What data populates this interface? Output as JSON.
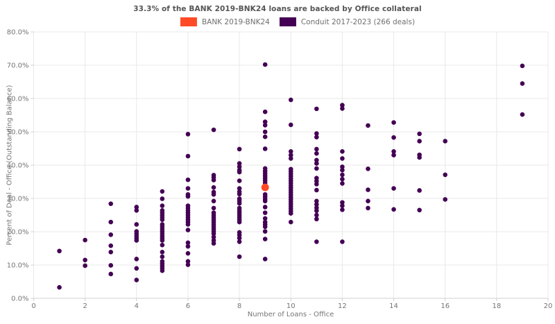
{
  "title": "33.3% of the BANK 2019-BNK24 loans are backed by Office collateral",
  "legend": [
    {
      "label": "BANK 2019-BNK24",
      "color": "#FF4B25"
    },
    {
      "label": "Conduit 2017-2023 (266 deals)",
      "color": "#440154"
    }
  ],
  "style": {
    "gridline_color": "#e8e8e8",
    "axis_line_color": "#cfcfcf",
    "tick_label_color": "#757575",
    "title_color": "#545454"
  },
  "chart_data": {
    "type": "scatter",
    "title": "33.3% of the BANK 2019-BNK24 loans are backed by Office collateral",
    "xlabel": "Number of Loans - Office",
    "ylabel": "Percent of Deal - Office (Outstanding Balance)",
    "xlim": [
      0,
      20
    ],
    "ylim": [
      0,
      80
    ],
    "x_ticks": [
      0,
      2,
      4,
      6,
      8,
      10,
      12,
      14,
      16,
      18,
      20
    ],
    "y_ticks": [
      0,
      10,
      20,
      30,
      40,
      50,
      60,
      70,
      80
    ],
    "y_tick_labels": [
      "0.0%",
      "10.0%",
      "20.0%",
      "30.0%",
      "40.0%",
      "50.0%",
      "60.0%",
      "70.0%",
      "80.0%"
    ],
    "grid": true,
    "legend_position": "top-center",
    "series": [
      {
        "name": "BANK 2019-BNK24",
        "color": "#FF4B25",
        "marker_radius": 5.5,
        "points": [
          [
            9,
            33.3
          ]
        ]
      },
      {
        "name": "Conduit 2017-2023 (266 deals)",
        "color": "#440154",
        "marker_radius": 3.3,
        "points": [
          [
            1,
            14.2
          ],
          [
            1,
            3.3
          ],
          [
            2,
            17.5
          ],
          [
            2,
            11.5
          ],
          [
            2,
            9.8
          ],
          [
            3,
            28.4
          ],
          [
            3,
            22.9
          ],
          [
            3,
            19.1
          ],
          [
            3,
            15.8
          ],
          [
            3,
            13.9
          ],
          [
            3,
            9.9
          ],
          [
            3,
            7.3
          ],
          [
            4,
            27.4
          ],
          [
            4,
            26.4
          ],
          [
            4,
            22.2
          ],
          [
            4,
            20.1
          ],
          [
            4,
            19.4
          ],
          [
            4,
            18.7
          ],
          [
            4,
            18.0
          ],
          [
            4,
            17.4
          ],
          [
            4,
            11.8
          ],
          [
            4,
            9.0
          ],
          [
            4,
            5.5
          ],
          [
            5,
            32.1
          ],
          [
            5,
            29.9
          ],
          [
            5,
            27.8
          ],
          [
            5,
            26.4
          ],
          [
            5,
            25.7
          ],
          [
            5,
            25.0
          ],
          [
            5,
            24.3
          ],
          [
            5,
            23.6
          ],
          [
            5,
            22.2
          ],
          [
            5,
            21.5
          ],
          [
            5,
            20.8
          ],
          [
            5,
            20.1
          ],
          [
            5,
            19.4
          ],
          [
            5,
            18.7
          ],
          [
            5,
            18.0
          ],
          [
            5,
            17.4
          ],
          [
            5,
            16.0
          ],
          [
            5,
            13.9
          ],
          [
            5,
            12.5
          ],
          [
            5,
            11.1
          ],
          [
            5,
            10.4
          ],
          [
            5,
            9.7
          ],
          [
            5,
            9.0
          ],
          [
            5,
            8.3
          ],
          [
            6,
            49.3
          ],
          [
            6,
            42.7
          ],
          [
            6,
            35.6
          ],
          [
            6,
            33.0
          ],
          [
            6,
            31.2
          ],
          [
            6,
            30.6
          ],
          [
            6,
            27.8
          ],
          [
            6,
            27.1
          ],
          [
            6,
            26.4
          ],
          [
            6,
            25.7
          ],
          [
            6,
            25.0
          ],
          [
            6,
            24.3
          ],
          [
            6,
            23.6
          ],
          [
            6,
            22.9
          ],
          [
            6,
            22.2
          ],
          [
            6,
            20.5
          ],
          [
            6,
            16.7
          ],
          [
            6,
            15.6
          ],
          [
            6,
            13.5
          ],
          [
            6,
            11.1
          ],
          [
            6,
            10.1
          ],
          [
            7,
            50.6
          ],
          [
            7,
            37.0
          ],
          [
            7,
            36.3
          ],
          [
            7,
            35.5
          ],
          [
            7,
            33.3
          ],
          [
            7,
            31.9
          ],
          [
            7,
            31.2
          ],
          [
            7,
            29.2
          ],
          [
            7,
            27.1
          ],
          [
            7,
            25.7
          ],
          [
            7,
            25.0
          ],
          [
            7,
            24.3
          ],
          [
            7,
            23.6
          ],
          [
            7,
            22.9
          ],
          [
            7,
            22.2
          ],
          [
            7,
            21.5
          ],
          [
            7,
            20.8
          ],
          [
            7,
            20.1
          ],
          [
            7,
            19.4
          ],
          [
            7,
            18.4
          ],
          [
            7,
            17.4
          ],
          [
            7,
            16.5
          ],
          [
            8,
            44.8
          ],
          [
            8,
            40.5
          ],
          [
            8,
            39.5
          ],
          [
            8,
            38.5
          ],
          [
            8,
            37.9
          ],
          [
            8,
            35.3
          ],
          [
            8,
            33.0
          ],
          [
            8,
            32.0
          ],
          [
            8,
            31.3
          ],
          [
            8,
            29.9
          ],
          [
            8,
            29.2
          ],
          [
            8,
            28.5
          ],
          [
            8,
            27.1
          ],
          [
            8,
            26.4
          ],
          [
            8,
            25.7
          ],
          [
            8,
            25.0
          ],
          [
            8,
            24.3
          ],
          [
            8,
            23.6
          ],
          [
            8,
            22.9
          ],
          [
            8,
            19.8
          ],
          [
            8,
            19.0
          ],
          [
            8,
            18.1
          ],
          [
            8,
            17.0
          ],
          [
            8,
            12.5
          ],
          [
            9,
            70.2
          ],
          [
            9,
            56.0
          ],
          [
            9,
            53.0
          ],
          [
            9,
            52.0
          ],
          [
            9,
            50.0
          ],
          [
            9,
            48.5
          ],
          [
            9,
            44.9
          ],
          [
            9,
            39.0
          ],
          [
            9,
            38.2
          ],
          [
            9,
            37.5
          ],
          [
            9,
            36.8
          ],
          [
            9,
            36.1
          ],
          [
            9,
            35.4
          ],
          [
            9,
            34.7
          ],
          [
            9,
            34.0
          ],
          [
            9,
            31.2
          ],
          [
            9,
            30.5
          ],
          [
            9,
            29.8
          ],
          [
            9,
            29.2
          ],
          [
            9,
            27.4
          ],
          [
            9,
            25.7
          ],
          [
            9,
            24.0
          ],
          [
            9,
            22.9
          ],
          [
            9,
            22.2
          ],
          [
            9,
            21.5
          ],
          [
            9,
            20.1
          ],
          [
            9,
            17.8
          ],
          [
            9,
            11.8
          ],
          [
            10,
            59.6
          ],
          [
            10,
            52.1
          ],
          [
            10,
            44.1
          ],
          [
            10,
            43.0
          ],
          [
            10,
            42.0
          ],
          [
            10,
            38.8
          ],
          [
            10,
            38.1
          ],
          [
            10,
            37.4
          ],
          [
            10,
            36.7
          ],
          [
            10,
            36.0
          ],
          [
            10,
            35.3
          ],
          [
            10,
            34.6
          ],
          [
            10,
            33.9
          ],
          [
            10,
            33.2
          ],
          [
            10,
            32.5
          ],
          [
            10,
            31.8
          ],
          [
            10,
            31.1
          ],
          [
            10,
            30.4
          ],
          [
            10,
            29.7
          ],
          [
            10,
            29.0
          ],
          [
            10,
            28.3
          ],
          [
            10,
            27.6
          ],
          [
            10,
            26.9
          ],
          [
            10,
            26.2
          ],
          [
            10,
            25.5
          ],
          [
            10,
            22.9
          ],
          [
            11,
            56.9
          ],
          [
            11,
            49.5
          ],
          [
            11,
            48.4
          ],
          [
            11,
            44.8
          ],
          [
            11,
            43.5
          ],
          [
            11,
            41.5
          ],
          [
            11,
            40.5
          ],
          [
            11,
            39.0
          ],
          [
            11,
            36.1
          ],
          [
            11,
            35.2
          ],
          [
            11,
            34.3
          ],
          [
            11,
            32.5
          ],
          [
            11,
            29.2
          ],
          [
            11,
            28.2
          ],
          [
            11,
            27.2
          ],
          [
            11,
            26.3
          ],
          [
            11,
            25.0
          ],
          [
            11,
            23.8
          ],
          [
            11,
            17.0
          ],
          [
            12,
            58.0
          ],
          [
            12,
            57.0
          ],
          [
            12,
            44.1
          ],
          [
            12,
            42.0
          ],
          [
            12,
            39.5
          ],
          [
            12,
            38.5
          ],
          [
            12,
            37.1
          ],
          [
            12,
            35.8
          ],
          [
            12,
            34.5
          ],
          [
            12,
            28.8
          ],
          [
            12,
            27.8
          ],
          [
            12,
            26.6
          ],
          [
            12,
            17.0
          ],
          [
            13,
            51.9
          ],
          [
            13,
            38.9
          ],
          [
            13,
            32.6
          ],
          [
            13,
            29.2
          ],
          [
            13,
            27.1
          ],
          [
            14,
            52.8
          ],
          [
            14,
            48.3
          ],
          [
            14,
            44.1
          ],
          [
            14,
            43.0
          ],
          [
            14,
            33.0
          ],
          [
            14,
            26.7
          ],
          [
            15,
            49.4
          ],
          [
            15,
            47.2
          ],
          [
            15,
            43.1
          ],
          [
            15,
            42.3
          ],
          [
            15,
            32.4
          ],
          [
            15,
            26.5
          ],
          [
            16,
            47.2
          ],
          [
            16,
            37.1
          ],
          [
            16,
            29.7
          ],
          [
            19,
            69.8
          ],
          [
            19,
            64.5
          ],
          [
            19,
            55.2
          ]
        ]
      }
    ]
  }
}
